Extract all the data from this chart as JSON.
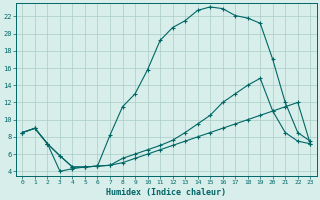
{
  "xlabel": "Humidex (Indice chaleur)",
  "xlim": [
    -0.5,
    23.5
  ],
  "ylim": [
    3.5,
    23.5
  ],
  "yticks": [
    4,
    6,
    8,
    10,
    12,
    14,
    16,
    18,
    20,
    22
  ],
  "xticks": [
    0,
    1,
    2,
    3,
    4,
    5,
    6,
    7,
    8,
    9,
    10,
    11,
    12,
    13,
    14,
    15,
    16,
    17,
    18,
    19,
    20,
    21,
    22,
    23
  ],
  "bg_color": "#d8eeea",
  "grid_color": "#aaccc6",
  "line_color": "#006666",
  "line1_x": [
    0,
    1,
    2,
    3,
    4,
    5,
    6,
    7,
    8,
    9,
    10,
    11,
    12,
    13,
    14,
    15,
    16,
    17,
    18,
    19,
    20,
    21,
    22,
    23
  ],
  "line1_y": [
    8.5,
    9.0,
    7.2,
    5.8,
    4.5,
    4.5,
    4.6,
    8.2,
    11.5,
    13.0,
    15.8,
    19.2,
    20.7,
    21.5,
    22.7,
    23.1,
    22.9,
    22.1,
    21.8,
    21.2,
    17.0,
    12.0,
    8.5,
    7.5
  ],
  "line2_x": [
    0,
    1,
    2,
    3,
    4,
    5,
    6,
    7,
    8,
    9,
    10,
    11,
    12,
    13,
    14,
    15,
    16,
    17,
    18,
    19,
    20,
    21,
    22,
    23
  ],
  "line2_y": [
    8.5,
    9.0,
    7.2,
    5.8,
    4.5,
    4.5,
    4.6,
    4.7,
    5.5,
    6.0,
    6.5,
    7.0,
    7.6,
    8.5,
    9.5,
    10.5,
    12.0,
    13.0,
    14.0,
    14.8,
    11.0,
    8.5,
    7.5,
    7.2
  ],
  "line3_x": [
    0,
    1,
    2,
    3,
    4,
    5,
    6,
    7,
    8,
    9,
    10,
    11,
    12,
    13,
    14,
    15,
    16,
    17,
    18,
    19,
    20,
    21,
    22,
    23
  ],
  "line3_y": [
    8.5,
    9.0,
    7.2,
    4.0,
    4.3,
    4.5,
    4.6,
    4.7,
    5.0,
    5.5,
    6.0,
    6.5,
    7.0,
    7.5,
    8.0,
    8.5,
    9.0,
    9.5,
    10.0,
    10.5,
    11.0,
    11.5,
    12.0,
    7.2
  ]
}
